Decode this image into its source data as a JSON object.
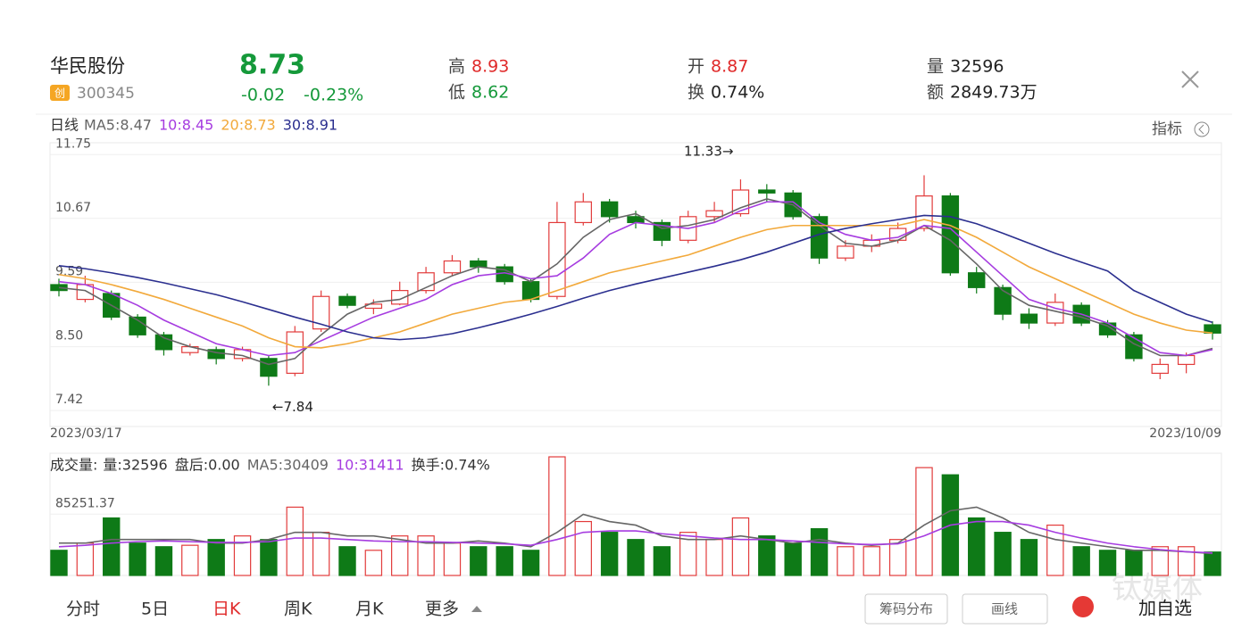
{
  "header": {
    "name": "华民股份",
    "badge": "创",
    "code": "300345",
    "price": "8.73",
    "change": "-0.02",
    "change_pct": "-0.23%",
    "high_label": "高",
    "high": "8.93",
    "low_label": "低",
    "low": "8.62",
    "open_label": "开",
    "open": "8.87",
    "turnover_label": "换",
    "turnover": "0.74%",
    "volume_label": "量",
    "volume": "32596",
    "amount_label": "额",
    "amount": "2849.73万"
  },
  "indicator_button": "指标",
  "chart_data": [
    {
      "type": "candlestick",
      "legend_title": "日线",
      "legend": [
        "MA5:8.47",
        "10:8.45",
        "20:8.73",
        "30:8.91"
      ],
      "x_labels": [
        "2023/03/17",
        "2023/10/09"
      ],
      "annotations": [
        "11.33→",
        "←7.84"
      ],
      "ylim": [
        7.15,
        11.95
      ],
      "yticks": [
        11.75,
        10.67,
        9.59,
        {
          "value": 8.5,
          "label": "8.50"
        },
        7.42
      ],
      "up_color": "#e23b3b",
      "down_color": "#0e7a17",
      "open": [
        9.55,
        9.3,
        9.4,
        9.0,
        8.7,
        8.4,
        8.45,
        8.3,
        8.3,
        8.05,
        8.8,
        9.35,
        9.15,
        9.22,
        9.45,
        9.75,
        9.95,
        9.85,
        9.6,
        9.35,
        10.6,
        10.95,
        10.7,
        10.6,
        10.3,
        10.7,
        10.75,
        11.15,
        11.1,
        10.7,
        10.0,
        10.2,
        10.3,
        10.5,
        11.05,
        9.75,
        9.5,
        9.05,
        8.9,
        9.2,
        8.9,
        8.7,
        8.05,
        8.2,
        8.87
      ],
      "high": [
        9.65,
        9.7,
        9.45,
        9.05,
        8.75,
        8.55,
        8.5,
        8.5,
        8.35,
        8.85,
        9.45,
        9.4,
        9.3,
        9.6,
        9.85,
        10.05,
        10.0,
        9.9,
        9.65,
        10.95,
        11.1,
        11.0,
        10.8,
        10.65,
        10.8,
        10.95,
        11.33,
        11.25,
        11.15,
        10.75,
        10.3,
        10.4,
        10.6,
        11.4,
        11.1,
        9.85,
        9.55,
        9.15,
        9.4,
        9.25,
        8.95,
        8.75,
        8.3,
        8.4,
        8.93
      ],
      "low": [
        9.35,
        9.25,
        8.95,
        8.65,
        8.35,
        8.35,
        8.2,
        8.25,
        7.84,
        8.0,
        8.75,
        9.15,
        9.05,
        9.2,
        9.4,
        9.7,
        9.75,
        9.55,
        9.25,
        9.3,
        10.55,
        10.6,
        10.5,
        10.2,
        10.25,
        10.6,
        10.7,
        10.95,
        10.65,
        9.9,
        9.95,
        10.1,
        10.25,
        10.45,
        9.7,
        9.4,
        8.95,
        8.8,
        8.85,
        8.85,
        8.65,
        8.25,
        7.95,
        8.05,
        8.62
      ],
      "close": [
        9.45,
        9.55,
        9.0,
        8.7,
        8.45,
        8.5,
        8.3,
        8.45,
        8.0,
        8.75,
        9.35,
        9.2,
        9.22,
        9.45,
        9.75,
        9.95,
        9.85,
        9.6,
        9.3,
        10.6,
        10.95,
        10.7,
        10.6,
        10.3,
        10.7,
        10.8,
        11.15,
        11.1,
        10.7,
        10.0,
        10.2,
        10.3,
        10.5,
        11.05,
        9.75,
        9.5,
        9.05,
        8.9,
        9.25,
        8.9,
        8.7,
        8.3,
        8.2,
        8.35,
        8.73
      ],
      "series": [
        {
          "name": "MA5",
          "color": "#666666",
          "values": [
            9.5,
            9.45,
            9.2,
            8.95,
            8.65,
            8.5,
            8.4,
            8.35,
            8.2,
            8.3,
            8.7,
            9.05,
            9.25,
            9.3,
            9.5,
            9.7,
            9.85,
            9.8,
            9.6,
            9.9,
            10.35,
            10.65,
            10.75,
            10.5,
            10.55,
            10.65,
            10.85,
            11.0,
            10.9,
            10.55,
            10.25,
            10.2,
            10.3,
            10.55,
            10.3,
            9.9,
            9.45,
            9.2,
            9.1,
            9.0,
            8.85,
            8.55,
            8.35,
            8.35,
            8.47
          ]
        },
        {
          "name": "MA10",
          "color": "#a63ce0",
          "values": [
            9.6,
            9.55,
            9.4,
            9.2,
            8.95,
            8.75,
            8.55,
            8.45,
            8.35,
            8.4,
            8.6,
            8.8,
            9.0,
            9.15,
            9.3,
            9.55,
            9.7,
            9.75,
            9.65,
            9.7,
            10.0,
            10.4,
            10.6,
            10.55,
            10.5,
            10.6,
            10.8,
            10.95,
            10.95,
            10.6,
            10.4,
            10.3,
            10.35,
            10.55,
            10.5,
            10.1,
            9.7,
            9.3,
            9.15,
            9.05,
            8.9,
            8.65,
            8.4,
            8.35,
            8.45
          ]
        },
        {
          "name": "MA20",
          "color": "#f2a93b",
          "values": [
            9.72,
            9.65,
            9.55,
            9.43,
            9.3,
            9.15,
            9.0,
            8.85,
            8.65,
            8.5,
            8.48,
            8.55,
            8.65,
            8.75,
            8.9,
            9.05,
            9.15,
            9.25,
            9.3,
            9.45,
            9.6,
            9.75,
            9.85,
            9.95,
            10.05,
            10.2,
            10.35,
            10.48,
            10.55,
            10.55,
            10.55,
            10.55,
            10.55,
            10.65,
            10.55,
            10.35,
            10.1,
            9.85,
            9.65,
            9.45,
            9.25,
            9.05,
            8.9,
            8.78,
            8.73
          ]
        },
        {
          "name": "MA30",
          "color": "#2b2f8f",
          "values": [
            9.87,
            9.82,
            9.75,
            9.67,
            9.58,
            9.48,
            9.38,
            9.26,
            9.13,
            9.0,
            8.88,
            8.75,
            8.65,
            8.62,
            8.65,
            8.72,
            8.82,
            8.93,
            9.05,
            9.18,
            9.32,
            9.45,
            9.56,
            9.66,
            9.76,
            9.86,
            9.97,
            10.1,
            10.25,
            10.4,
            10.5,
            10.58,
            10.65,
            10.72,
            10.7,
            10.58,
            10.42,
            10.25,
            10.08,
            9.93,
            9.78,
            9.45,
            9.25,
            9.05,
            8.91
          ]
        }
      ]
    },
    {
      "type": "bar",
      "legend_title": "成交量:",
      "legend": [
        "量:32596",
        "盘后:0.00",
        "MA5:30409",
        "10:31411",
        "换手:0.74%"
      ],
      "ylim": [
        0,
        170000
      ],
      "yticks": [
        85251.37
      ],
      "values": [
        35000,
        45000,
        80000,
        45000,
        40000,
        42000,
        50000,
        55000,
        50000,
        95000,
        60000,
        40000,
        35000,
        55000,
        55000,
        45000,
        40000,
        40000,
        35000,
        165000,
        75000,
        60000,
        50000,
        40000,
        60000,
        50000,
        80000,
        55000,
        45000,
        65000,
        40000,
        40000,
        50000,
        150000,
        140000,
        80000,
        60000,
        50000,
        70000,
        40000,
        35000,
        35000,
        40000,
        40000,
        32596
      ],
      "series": [
        {
          "name": "MA5",
          "color": "#666666",
          "values": [
            45000,
            45000,
            50000,
            50000,
            50000,
            50000,
            45000,
            45000,
            50000,
            60000,
            60000,
            55000,
            55000,
            50000,
            45000,
            45000,
            48000,
            45000,
            40000,
            60000,
            85000,
            75000,
            70000,
            55000,
            50000,
            50000,
            55000,
            50000,
            45000,
            50000,
            45000,
            42000,
            45000,
            70000,
            90000,
            95000,
            80000,
            60000,
            50000,
            45000,
            40000,
            35000,
            35000,
            33000,
            30409
          ]
        },
        {
          "name": "10",
          "color": "#a63ce0",
          "values": [
            40000,
            42000,
            45000,
            47000,
            48000,
            47000,
            46000,
            46000,
            47000,
            52000,
            52000,
            50000,
            48000,
            47000,
            47000,
            46000,
            45000,
            44000,
            42000,
            50000,
            60000,
            62000,
            62000,
            58000,
            55000,
            52000,
            50000,
            50000,
            48000,
            46000,
            44000,
            43000,
            44000,
            55000,
            70000,
            75000,
            75000,
            70000,
            60000,
            52000,
            45000,
            40000,
            36000,
            33000,
            31411
          ]
        }
      ]
    }
  ],
  "tabs": [
    "分时",
    "5日",
    "日K",
    "周K",
    "月K",
    "更多"
  ],
  "buttons": [
    "筹码分布",
    "画线",
    "加自选"
  ],
  "watermark": "钛媒体"
}
